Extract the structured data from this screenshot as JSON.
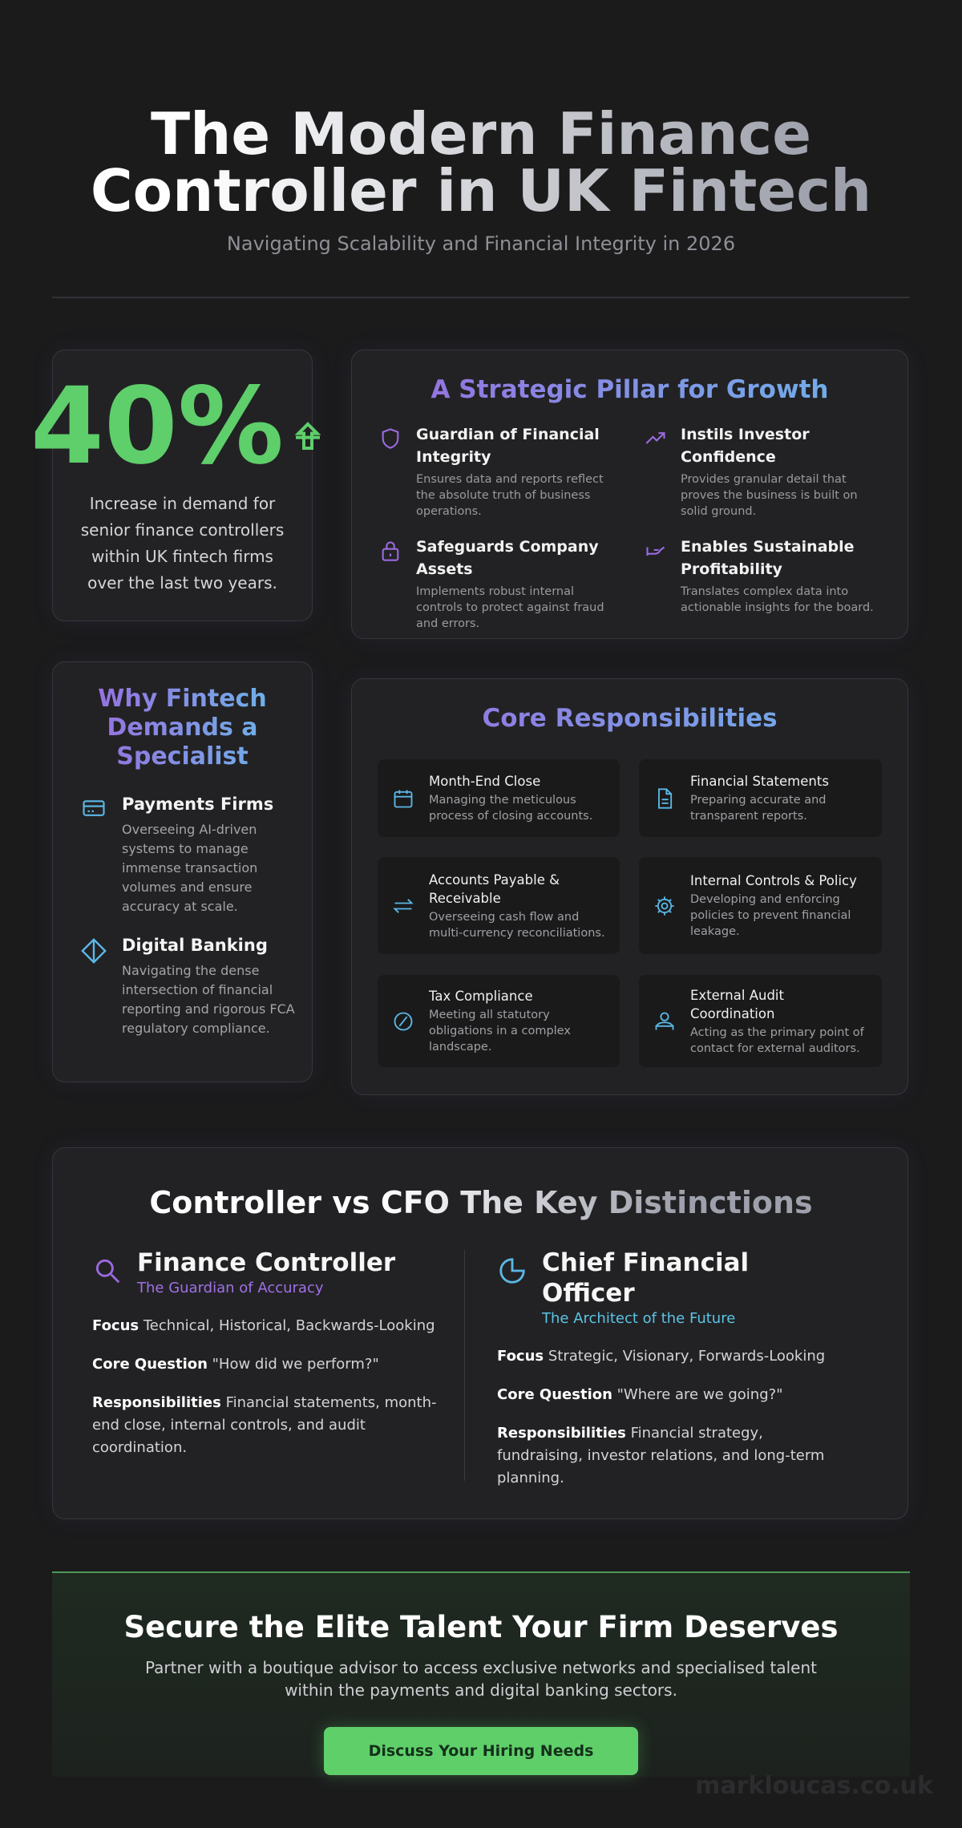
{
  "header": {
    "title_line1": "The Modern Finance",
    "title_line2": "Controller in UK Fintech",
    "subtitle": "Navigating Scalability and Financial Integrity in 2026"
  },
  "stat": {
    "value": "40%",
    "text": "Increase in demand for senior finance controllers within UK fintech firms over the last two years."
  },
  "pillars": {
    "title": "A Strategic Pillar for Growth",
    "items": [
      {
        "title": "Guardian of Financial Integrity",
        "text": "Ensures data and reports reflect the absolute truth of business operations."
      },
      {
        "title": "Instils Investor Confidence",
        "text": "Provides granular detail that proves the business is built on solid ground."
      },
      {
        "title": "Safeguards Company Assets",
        "text": "Implements robust internal controls to protect against fraud and errors."
      },
      {
        "title": "Enables Sustainable Profitability",
        "text": "Translates complex data into actionable insights for the board."
      }
    ]
  },
  "why": {
    "title": "Why Fintech Demands a Specialist",
    "items": [
      {
        "title": "Payments Firms",
        "text": "Overseeing AI-driven systems to manage immense transaction volumes and ensure accuracy at scale."
      },
      {
        "title": "Digital Banking",
        "text": "Navigating the dense intersection of financial reporting and rigorous FCA regulatory compliance."
      }
    ]
  },
  "responsibilities": {
    "title": "Core Responsibilities",
    "items": [
      {
        "title": "Month-End Close",
        "text": "Managing the meticulous process of closing accounts."
      },
      {
        "title": "Financial Statements",
        "text": "Preparing accurate and transparent reports."
      },
      {
        "title": "Accounts Payable & Receivable",
        "text": "Overseeing cash flow and multi-currency reconciliations."
      },
      {
        "title": "Internal Controls & Policy",
        "text": "Developing and enforcing policies to prevent financial leakage."
      },
      {
        "title": "Tax Compliance",
        "text": "Meeting all statutory obligations in a complex landscape."
      },
      {
        "title": "External Audit Coordination",
        "text": "Acting as the primary point of contact for external auditors."
      }
    ]
  },
  "comparison": {
    "title": "Controller vs CFO The Key Distinctions",
    "columns": [
      {
        "title": "Finance Controller",
        "subtitle": "The Guardian of Accuracy",
        "rows": [
          {
            "label": "Focus",
            "text": "Technical, Historical, Backwards-Looking"
          },
          {
            "label": "Core Question",
            "text": "\"How did we perform?\""
          },
          {
            "label": "Responsibilities",
            "text": "Financial statements, month-end close, internal controls, and audit coordination."
          }
        ]
      },
      {
        "title": "Chief Financial Officer",
        "subtitle": "The Architect of the Future",
        "rows": [
          {
            "label": "Focus",
            "text": "Strategic, Visionary, Forwards-Looking"
          },
          {
            "label": "Core Question",
            "text": "\"Where are we going?\""
          },
          {
            "label": "Responsibilities",
            "text": "Financial strategy, fundraising, investor relations, and long-term planning."
          }
        ]
      }
    ]
  },
  "cta": {
    "title": "Secure the Elite Talent Your Firm Deserves",
    "text": "Partner with a boutique advisor to access exclusive networks and specialised talent within the payments and digital banking sectors.",
    "button": "Discuss Your Hiring Needs"
  },
  "watermark": "markloucas.co.uk"
}
